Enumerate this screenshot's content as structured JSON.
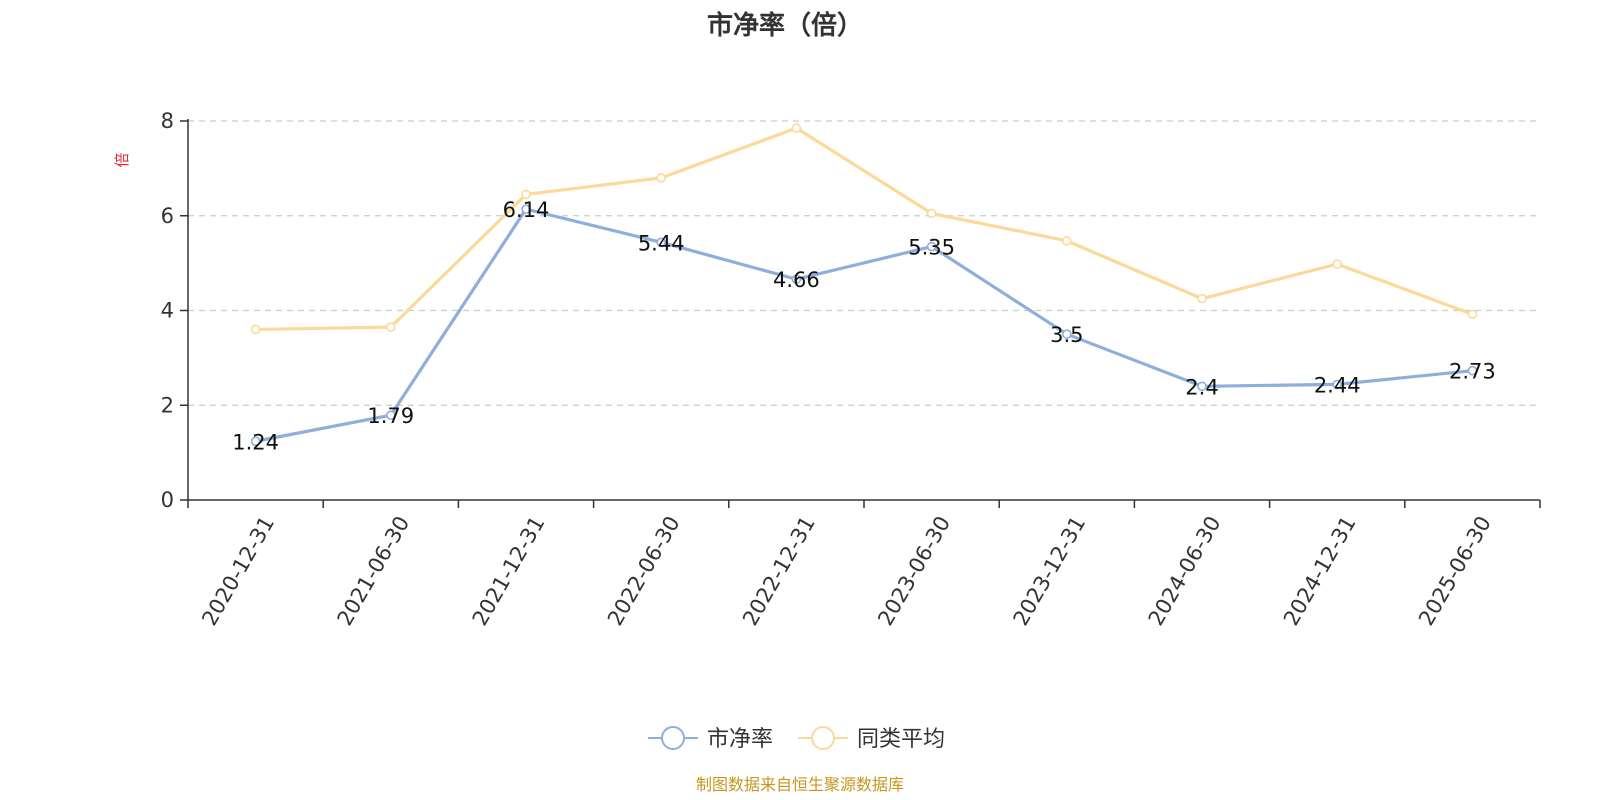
{
  "chart_data": {
    "type": "line",
    "title": "市净率（倍）",
    "ylabel": "倍",
    "xlabel": "",
    "ylim": [
      0,
      8
    ],
    "yticks": [
      0,
      2,
      4,
      6,
      8
    ],
    "grid": true,
    "legend_position": "bottom",
    "categories": [
      "2020-12-31",
      "2021-06-30",
      "2021-12-31",
      "2022-06-30",
      "2022-12-31",
      "2023-06-30",
      "2023-12-31",
      "2024-06-30",
      "2024-12-31",
      "2025-06-30"
    ],
    "series": [
      {
        "name": "市净率",
        "color": "#8eaedb",
        "values": [
          1.24,
          1.79,
          6.14,
          5.44,
          4.66,
          5.35,
          3.5,
          2.4,
          2.44,
          2.73
        ],
        "labels": [
          "1.24",
          "1.79",
          "6.14",
          "5.44",
          "4.66",
          "5.35",
          "3.5",
          "2.4",
          "2.44",
          "2.73"
        ]
      },
      {
        "name": "同类平均",
        "color": "#fcd999",
        "values": [
          3.6,
          3.65,
          6.45,
          6.8,
          7.85,
          6.05,
          5.47,
          4.25,
          4.98,
          3.92
        ]
      }
    ]
  },
  "footer": {
    "source": "制图数据来自恒生聚源数据库"
  }
}
